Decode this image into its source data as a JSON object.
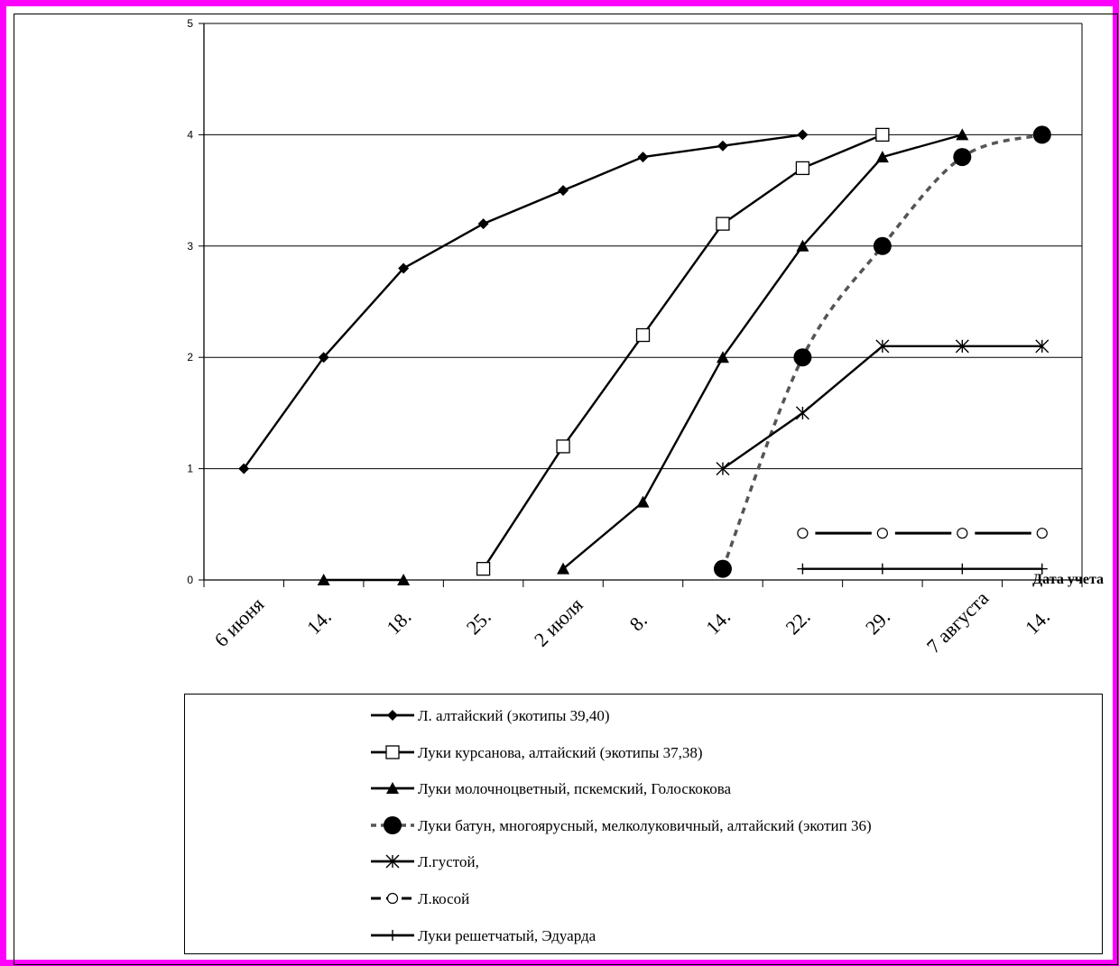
{
  "chart_data": {
    "type": "line",
    "xlabel": "Дата учета",
    "ylabel": "",
    "ylim": [
      0,
      5
    ],
    "yticks": [
      "0",
      "1",
      "2",
      "3",
      "4",
      "5"
    ],
    "categories": [
      "6 июня",
      "14.",
      "18.",
      "25.",
      "2 июля",
      "8.",
      "14.",
      "22.",
      "29.",
      "7 августа",
      "14."
    ],
    "grid": "horizontal",
    "legend_position": "bottom",
    "series": [
      {
        "name": "Л. алтайский (экотипы 39,40)",
        "marker": "diamond",
        "dash": "solid",
        "color": "#000000",
        "points": [
          [
            0.5,
            1.0
          ],
          [
            1.5,
            2.0
          ],
          [
            2.5,
            2.8
          ],
          [
            3.5,
            3.2
          ],
          [
            4.5,
            3.5
          ],
          [
            5.5,
            3.8
          ],
          [
            6.5,
            3.9
          ],
          [
            7.5,
            4.0
          ]
        ]
      },
      {
        "name": "Луки курсанова, алтайский (экотипы 37,38)",
        "marker": "square-open",
        "dash": "solid",
        "color": "#000000",
        "points": [
          [
            3.5,
            0.1
          ],
          [
            4.5,
            1.2
          ],
          [
            5.5,
            2.2
          ],
          [
            6.5,
            3.2
          ],
          [
            7.5,
            3.7
          ],
          [
            8.5,
            4.0
          ]
        ]
      },
      {
        "name": "Луки молочноцветный, пскемский, Голоскокова",
        "marker": "triangle",
        "dash": "solid",
        "color": "#000000",
        "points": [
          [
            4.5,
            0.1
          ],
          [
            5.5,
            0.7
          ],
          [
            6.5,
            2.0
          ],
          [
            7.5,
            3.0
          ],
          [
            8.5,
            3.8
          ],
          [
            9.5,
            4.0
          ]
        ],
        "extra_points": [
          [
            1.5,
            0.0
          ],
          [
            2.5,
            0.0
          ]
        ]
      },
      {
        "name": "Луки батун, многоярусный, мелколуковичный, алтайский (экотип 36)",
        "marker": "circle-filled",
        "dash": "dashed",
        "color": "#555555",
        "points": [
          [
            6.5,
            0.1
          ],
          [
            7.5,
            2.0
          ],
          [
            8.5,
            3.0
          ],
          [
            9.5,
            3.8
          ],
          [
            10.5,
            4.0
          ]
        ]
      },
      {
        "name": "Л.густой,",
        "marker": "asterisk",
        "dash": "solid",
        "color": "#000000",
        "points": [
          [
            6.5,
            1.0
          ],
          [
            7.5,
            1.5
          ],
          [
            8.5,
            2.1
          ],
          [
            9.5,
            2.1
          ],
          [
            10.5,
            2.1
          ]
        ]
      },
      {
        "name": "Л.косой",
        "marker": "circle-open",
        "dash": "long-dash",
        "color": "#000000",
        "points": [
          [
            7.5,
            0.42
          ],
          [
            8.5,
            0.42
          ],
          [
            9.5,
            0.42
          ],
          [
            10.5,
            0.42
          ]
        ]
      },
      {
        "name": "Луки решетчатый, Эдуарда",
        "marker": "plus",
        "dash": "solid",
        "color": "#000000",
        "points": [
          [
            7.5,
            0.1
          ],
          [
            8.5,
            0.1
          ],
          [
            9.5,
            0.1
          ],
          [
            10.5,
            0.1
          ]
        ]
      }
    ]
  }
}
